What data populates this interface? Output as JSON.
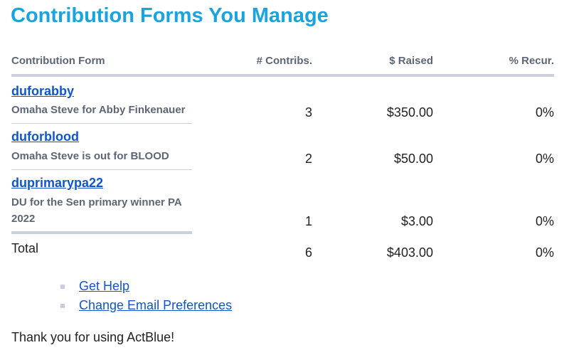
{
  "title": "Contribution Forms You Manage",
  "headers": {
    "form": "Contribution Form",
    "contribs": "# Contribs.",
    "raised": "$ Raised",
    "recur": "% Recur."
  },
  "rows": [
    {
      "name": "duforabby",
      "description": "Omaha Steve for Abby Finkenauer",
      "contribs": "3",
      "raised": "$350.00",
      "recur": "0%"
    },
    {
      "name": "duforblood",
      "description": "Omaha Steve is out for BLOOD",
      "contribs": "2",
      "raised": "$50.00",
      "recur": "0%"
    },
    {
      "name": "duprimarypa22",
      "description": "DU for the Sen primary winner PA 2022",
      "contribs": "1",
      "raised": "$3.00",
      "recur": "0%"
    }
  ],
  "total": {
    "label": "Total",
    "contribs": "6",
    "raised": "$403.00",
    "recur": "0%"
  },
  "links": [
    "Get Help",
    "Change Email Preferences"
  ],
  "thanks": "Thank you for using ActBlue!",
  "colors": {
    "title": "#1ba3dd",
    "link": "#1155cc",
    "rule": "#cbd0db"
  }
}
